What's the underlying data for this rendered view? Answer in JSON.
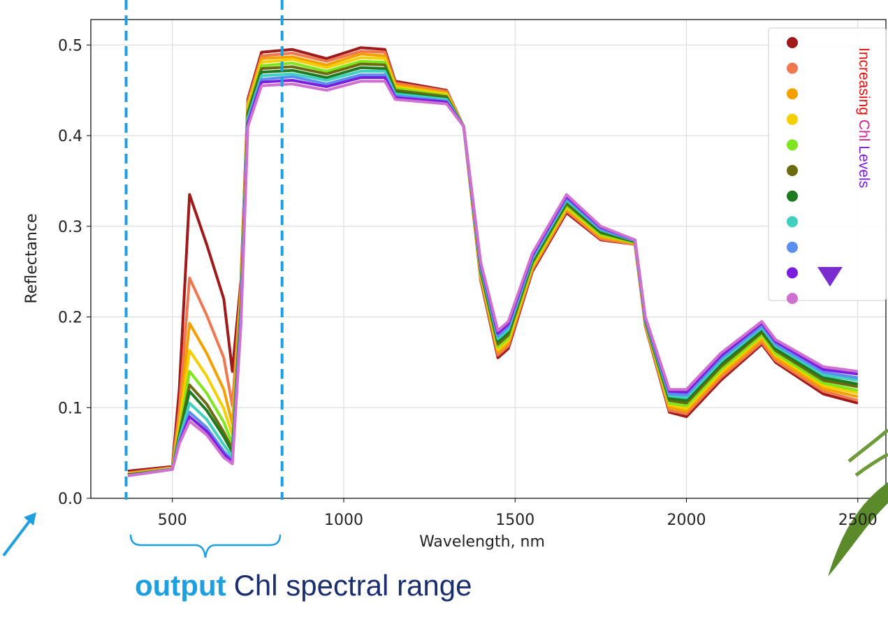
{
  "chart_data": {
    "type": "line",
    "xlabel": "Wavelength, nm",
    "ylabel": "Reflectance",
    "x": [
      370,
      500,
      520,
      550,
      600,
      650,
      675,
      700,
      720,
      760,
      850,
      950,
      1050,
      1120,
      1150,
      1300,
      1350,
      1400,
      1450,
      1480,
      1550,
      1650,
      1750,
      1850,
      1880,
      1950,
      2000,
      2100,
      2220,
      2260,
      2400,
      2500
    ],
    "series": [
      {
        "color": "#a01a1a",
        "values": [
          0.03,
          0.035,
          0.12,
          0.335,
          0.28,
          0.22,
          0.14,
          0.24,
          0.44,
          0.492,
          0.495,
          0.485,
          0.497,
          0.495,
          0.46,
          0.45,
          0.41,
          0.24,
          0.155,
          0.165,
          0.25,
          0.315,
          0.285,
          0.28,
          0.19,
          0.095,
          0.09,
          0.13,
          0.17,
          0.15,
          0.115,
          0.105
        ]
      },
      {
        "color": "#f07850",
        "values": [
          0.028,
          0.034,
          0.098,
          0.243,
          0.202,
          0.155,
          0.102,
          0.235,
          0.437,
          0.488,
          0.491,
          0.482,
          0.493,
          0.492,
          0.458,
          0.449,
          0.41,
          0.242,
          0.158,
          0.168,
          0.252,
          0.317,
          0.286,
          0.28,
          0.191,
          0.097,
          0.093,
          0.133,
          0.172,
          0.152,
          0.118,
          0.108
        ]
      },
      {
        "color": "#f5a000",
        "values": [
          0.027,
          0.033,
          0.086,
          0.193,
          0.16,
          0.12,
          0.082,
          0.23,
          0.434,
          0.485,
          0.487,
          0.478,
          0.49,
          0.488,
          0.456,
          0.447,
          0.41,
          0.244,
          0.161,
          0.171,
          0.254,
          0.319,
          0.288,
          0.281,
          0.192,
          0.1,
          0.096,
          0.136,
          0.175,
          0.155,
          0.121,
          0.112
        ]
      },
      {
        "color": "#f5d000",
        "values": [
          0.027,
          0.033,
          0.079,
          0.163,
          0.135,
          0.099,
          0.07,
          0.225,
          0.431,
          0.481,
          0.484,
          0.475,
          0.486,
          0.485,
          0.454,
          0.446,
          0.41,
          0.246,
          0.164,
          0.174,
          0.256,
          0.321,
          0.29,
          0.282,
          0.193,
          0.103,
          0.099,
          0.139,
          0.178,
          0.158,
          0.124,
          0.116
        ]
      },
      {
        "color": "#7fe61e",
        "values": [
          0.026,
          0.033,
          0.073,
          0.14,
          0.116,
          0.084,
          0.06,
          0.22,
          0.428,
          0.477,
          0.48,
          0.471,
          0.482,
          0.481,
          0.452,
          0.444,
          0.41,
          0.248,
          0.167,
          0.177,
          0.258,
          0.323,
          0.291,
          0.282,
          0.194,
          0.105,
          0.102,
          0.142,
          0.18,
          0.16,
          0.127,
          0.119
        ]
      },
      {
        "color": "#6b6b10",
        "values": [
          0.026,
          0.032,
          0.07,
          0.125,
          0.104,
          0.073,
          0.054,
          0.215,
          0.425,
          0.474,
          0.476,
          0.468,
          0.479,
          0.478,
          0.45,
          0.443,
          0.41,
          0.25,
          0.17,
          0.18,
          0.26,
          0.325,
          0.293,
          0.283,
          0.195,
          0.108,
          0.105,
          0.145,
          0.183,
          0.163,
          0.13,
          0.123
        ]
      },
      {
        "color": "#1e7a1e",
        "values": [
          0.026,
          0.032,
          0.068,
          0.118,
          0.097,
          0.068,
          0.051,
          0.21,
          0.422,
          0.47,
          0.472,
          0.464,
          0.475,
          0.474,
          0.448,
          0.441,
          0.41,
          0.252,
          0.173,
          0.183,
          0.262,
          0.327,
          0.294,
          0.283,
          0.196,
          0.11,
          0.108,
          0.148,
          0.185,
          0.165,
          0.133,
          0.126
        ]
      },
      {
        "color": "#40d0c0",
        "values": [
          0.025,
          0.032,
          0.065,
          0.105,
          0.087,
          0.059,
          0.046,
          0.205,
          0.419,
          0.466,
          0.468,
          0.461,
          0.471,
          0.471,
          0.446,
          0.44,
          0.41,
          0.254,
          0.176,
          0.186,
          0.264,
          0.329,
          0.296,
          0.284,
          0.197,
          0.113,
          0.111,
          0.151,
          0.188,
          0.168,
          0.136,
          0.13
        ]
      },
      {
        "color": "#5a8ff0",
        "values": [
          0.025,
          0.032,
          0.062,
          0.095,
          0.078,
          0.052,
          0.042,
          0.2,
          0.416,
          0.462,
          0.465,
          0.457,
          0.467,
          0.467,
          0.444,
          0.438,
          0.41,
          0.256,
          0.179,
          0.189,
          0.266,
          0.331,
          0.297,
          0.284,
          0.198,
          0.115,
          0.114,
          0.154,
          0.19,
          0.17,
          0.139,
          0.133
        ]
      },
      {
        "color": "#7a1ee0",
        "values": [
          0.025,
          0.032,
          0.061,
          0.09,
          0.074,
          0.049,
          0.04,
          0.195,
          0.413,
          0.459,
          0.461,
          0.454,
          0.464,
          0.464,
          0.442,
          0.437,
          0.41,
          0.258,
          0.182,
          0.192,
          0.268,
          0.333,
          0.299,
          0.285,
          0.199,
          0.118,
          0.117,
          0.157,
          0.193,
          0.173,
          0.142,
          0.137
        ]
      },
      {
        "color": "#d070d0",
        "values": [
          0.025,
          0.032,
          0.06,
          0.085,
          0.07,
          0.045,
          0.038,
          0.19,
          0.41,
          0.455,
          0.457,
          0.45,
          0.46,
          0.46,
          0.44,
          0.435,
          0.41,
          0.26,
          0.185,
          0.195,
          0.27,
          0.335,
          0.3,
          0.285,
          0.2,
          0.12,
          0.12,
          0.16,
          0.195,
          0.175,
          0.145,
          0.14
        ]
      }
    ],
    "xlim": [
      262,
      2582
    ],
    "ylim": [
      0,
      0.528
    ],
    "xticks": [
      500,
      1000,
      1500,
      2000,
      2500
    ],
    "yticks": [
      {
        "value": 0,
        "label": "0.0"
      },
      0.1,
      0.2,
      0.3,
      0.4,
      0.5
    ],
    "grid": true,
    "vlines": [
      365,
      820
    ],
    "vline_color": "#1ea0e0",
    "legend_note": [
      "Increasing",
      "Chl",
      "Levels"
    ],
    "legend_note_colors": [
      "#e01010",
      "#d02090",
      "#7a1ee0"
    ],
    "caption": [
      "output",
      "Chl spectral range"
    ],
    "caption_colors": [
      "#1ea0e0",
      "#1a2e6e"
    ]
  }
}
